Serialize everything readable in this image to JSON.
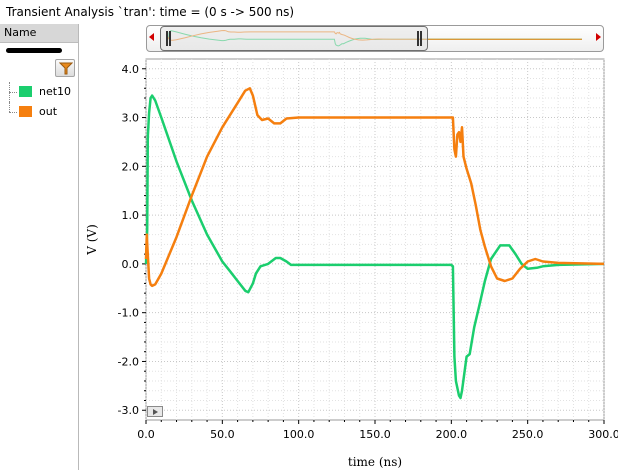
{
  "window": {
    "title": "Transient Analysis `tran': time = (0 s -> 500 ns)"
  },
  "side_panel": {
    "header": "Name",
    "filter_icon": "filter-icon",
    "signals": [
      {
        "name": "net10",
        "color": "#1bce6e"
      },
      {
        "name": "out",
        "color": "#f57f0f"
      }
    ]
  },
  "overview": {
    "left_arrow_icon": "scroll-left-icon",
    "right_arrow_icon": "scroll-right-icon"
  },
  "chart_data": {
    "type": "line",
    "title": "",
    "xlabel": "time (ns)",
    "ylabel": "V (V)",
    "xlim": [
      0,
      300
    ],
    "ylim": [
      -3.2,
      4.2
    ],
    "xticks": [
      "0.0",
      "50.0",
      "100.0",
      "150.0",
      "200.0",
      "250.0",
      "300.0"
    ],
    "yticks": [
      "4.0",
      "3.0",
      "2.0",
      "1.0",
      "0.0",
      "-1.0",
      "-2.0",
      "-3.0"
    ],
    "grid": true,
    "series": [
      {
        "name": "net10",
        "color": "#1bce6e",
        "points": [
          [
            0,
            0.0
          ],
          [
            0.8,
            0.7
          ],
          [
            1.2,
            2.6
          ],
          [
            2,
            3.1
          ],
          [
            3,
            3.4
          ],
          [
            4,
            3.45
          ],
          [
            6,
            3.35
          ],
          [
            10,
            3.0
          ],
          [
            20,
            2.1
          ],
          [
            30,
            1.3
          ],
          [
            40,
            0.6
          ],
          [
            50,
            0.05
          ],
          [
            55,
            -0.15
          ],
          [
            60,
            -0.35
          ],
          [
            65,
            -0.55
          ],
          [
            67,
            -0.58
          ],
          [
            70,
            -0.4
          ],
          [
            72,
            -0.2
          ],
          [
            75,
            -0.05
          ],
          [
            80,
            0.0
          ],
          [
            85,
            0.12
          ],
          [
            88,
            0.12
          ],
          [
            92,
            0.05
          ],
          [
            95,
            -0.02
          ],
          [
            100,
            -0.02
          ],
          [
            110,
            -0.02
          ],
          [
            200,
            -0.02
          ],
          [
            201,
            -0.05
          ],
          [
            202,
            -1.9
          ],
          [
            203,
            -2.4
          ],
          [
            205,
            -2.7
          ],
          [
            206,
            -2.75
          ],
          [
            207,
            -2.6
          ],
          [
            210,
            -1.9
          ],
          [
            212,
            -1.85
          ],
          [
            215,
            -1.3
          ],
          [
            218,
            -0.9
          ],
          [
            222,
            -0.35
          ],
          [
            226,
            0.1
          ],
          [
            232,
            0.38
          ],
          [
            238,
            0.38
          ],
          [
            242,
            0.2
          ],
          [
            246,
            0.0
          ],
          [
            250,
            -0.1
          ],
          [
            256,
            -0.08
          ],
          [
            260,
            -0.05
          ],
          [
            270,
            -0.02
          ],
          [
            300,
            0.0
          ]
        ]
      },
      {
        "name": "out",
        "color": "#f57f0f",
        "points": [
          [
            0,
            0.1
          ],
          [
            0.5,
            0.6
          ],
          [
            1,
            0.3
          ],
          [
            2,
            -0.3
          ],
          [
            3,
            -0.42
          ],
          [
            4,
            -0.45
          ],
          [
            6,
            -0.42
          ],
          [
            10,
            -0.2
          ],
          [
            20,
            0.55
          ],
          [
            30,
            1.4
          ],
          [
            40,
            2.2
          ],
          [
            50,
            2.8
          ],
          [
            60,
            3.3
          ],
          [
            65,
            3.55
          ],
          [
            68,
            3.6
          ],
          [
            70,
            3.45
          ],
          [
            73,
            3.05
          ],
          [
            76,
            2.95
          ],
          [
            80,
            2.98
          ],
          [
            84,
            2.88
          ],
          [
            88,
            2.88
          ],
          [
            92,
            2.98
          ],
          [
            100,
            3.0
          ],
          [
            150,
            3.0
          ],
          [
            200,
            3.0
          ],
          [
            201,
            3.0
          ],
          [
            202,
            2.35
          ],
          [
            203,
            2.2
          ],
          [
            204,
            2.65
          ],
          [
            205,
            2.7
          ],
          [
            206,
            2.5
          ],
          [
            207,
            2.8
          ],
          [
            208,
            2.2
          ],
          [
            210,
            1.95
          ],
          [
            213,
            1.65
          ],
          [
            216,
            1.2
          ],
          [
            219,
            0.7
          ],
          [
            222,
            0.35
          ],
          [
            226,
            -0.05
          ],
          [
            230,
            -0.3
          ],
          [
            235,
            -0.35
          ],
          [
            240,
            -0.3
          ],
          [
            245,
            -0.1
          ],
          [
            250,
            0.05
          ],
          [
            255,
            0.1
          ],
          [
            260,
            0.05
          ],
          [
            270,
            0.02
          ],
          [
            300,
            0.0
          ]
        ]
      }
    ]
  }
}
